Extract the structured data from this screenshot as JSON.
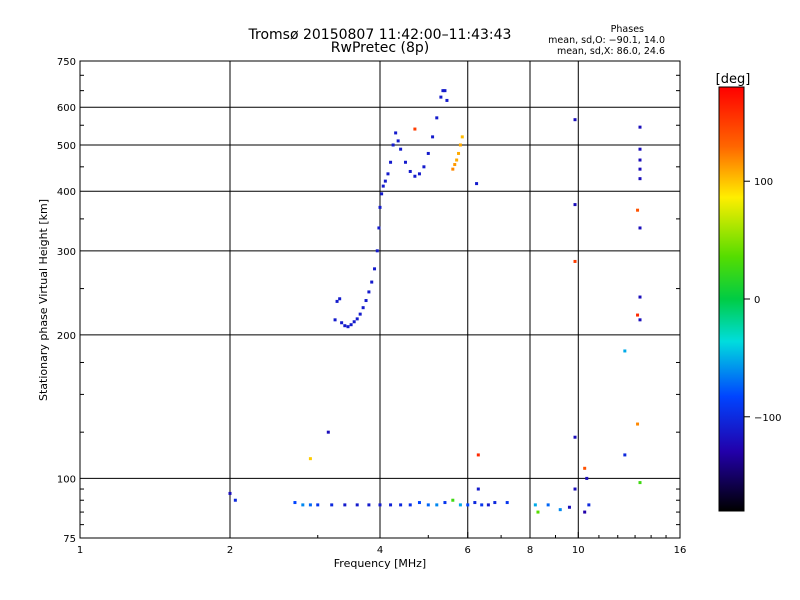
{
  "header": {
    "title_line1": "Tromsø 20150807 11:42:00–11:43:43",
    "title_line2": "RwPretec (8p)"
  },
  "phases": {
    "heading": "Phases",
    "line_o": "mean, sd,O: −90.1, 14.0",
    "line_x": "mean, sd,X:  86.0, 24.6"
  },
  "colorbar": {
    "label": "[deg]",
    "ticks": [
      "100",
      "0",
      "−100"
    ],
    "tick_values": [
      100,
      0,
      -100
    ],
    "range": [
      -180,
      180
    ]
  },
  "chart_data": {
    "type": "scatter",
    "xlabel": "Frequency [MHz]",
    "ylabel": "Stationary phase Virtual Height [km]",
    "xscale": "log",
    "yscale": "log",
    "xlim": [
      1,
      16
    ],
    "ylim": [
      75,
      750
    ],
    "xticks": [
      1,
      2,
      4,
      6,
      8,
      10,
      16
    ],
    "xtick_labels": [
      "1",
      "2",
      "4",
      "6",
      "8",
      "10",
      "16"
    ],
    "yticks": [
      75,
      100,
      200,
      300,
      400,
      500,
      600,
      750
    ],
    "ytick_labels": [
      "75",
      "100",
      "200",
      "300",
      "400",
      "500",
      "600",
      "750"
    ],
    "grid": true,
    "colormap": "rainbow phase, -180 to 180 deg",
    "trace_f_region": [
      {
        "f": 3.25,
        "h": 215,
        "phase": -110
      },
      {
        "f": 3.28,
        "h": 235,
        "phase": -110
      },
      {
        "f": 3.32,
        "h": 238,
        "phase": -110
      },
      {
        "f": 3.35,
        "h": 212,
        "phase": -110
      },
      {
        "f": 3.4,
        "h": 209,
        "phase": -110
      },
      {
        "f": 3.45,
        "h": 208,
        "phase": -110
      },
      {
        "f": 3.5,
        "h": 210,
        "phase": -110
      },
      {
        "f": 3.55,
        "h": 213,
        "phase": -110
      },
      {
        "f": 3.6,
        "h": 216,
        "phase": -110
      },
      {
        "f": 3.65,
        "h": 221,
        "phase": -110
      },
      {
        "f": 3.7,
        "h": 228,
        "phase": -110
      },
      {
        "f": 3.75,
        "h": 236,
        "phase": -110
      },
      {
        "f": 3.8,
        "h": 246,
        "phase": -110
      },
      {
        "f": 3.85,
        "h": 258,
        "phase": -110
      },
      {
        "f": 3.9,
        "h": 275,
        "phase": -110
      },
      {
        "f": 3.95,
        "h": 300,
        "phase": -110
      },
      {
        "f": 3.98,
        "h": 335,
        "phase": -110
      },
      {
        "f": 4.0,
        "h": 370,
        "phase": -110
      },
      {
        "f": 4.03,
        "h": 395,
        "phase": -110
      },
      {
        "f": 4.06,
        "h": 410,
        "phase": -110
      },
      {
        "f": 4.1,
        "h": 420,
        "phase": -110
      },
      {
        "f": 4.15,
        "h": 435,
        "phase": -110
      },
      {
        "f": 4.2,
        "h": 460,
        "phase": -110
      },
      {
        "f": 4.25,
        "h": 500,
        "phase": -110
      },
      {
        "f": 4.3,
        "h": 530,
        "phase": -110
      },
      {
        "f": 4.35,
        "h": 510,
        "phase": -110
      },
      {
        "f": 4.4,
        "h": 490,
        "phase": -110
      },
      {
        "f": 4.5,
        "h": 460,
        "phase": -110
      },
      {
        "f": 4.6,
        "h": 440,
        "phase": -110
      },
      {
        "f": 4.7,
        "h": 430,
        "phase": -110
      },
      {
        "f": 4.8,
        "h": 435,
        "phase": -110
      },
      {
        "f": 4.9,
        "h": 450,
        "phase": -110
      },
      {
        "f": 5.0,
        "h": 480,
        "phase": -110
      },
      {
        "f": 5.1,
        "h": 520,
        "phase": -110
      },
      {
        "f": 5.2,
        "h": 570,
        "phase": -110
      },
      {
        "f": 5.3,
        "h": 630,
        "phase": -110
      },
      {
        "f": 5.35,
        "h": 650,
        "phase": -110
      },
      {
        "f": 5.4,
        "h": 650,
        "phase": -110
      },
      {
        "f": 5.45,
        "h": 620,
        "phase": -110
      }
    ],
    "trace_x_mode": [
      {
        "f": 5.6,
        "h": 445,
        "phase": 120
      },
      {
        "f": 5.65,
        "h": 455,
        "phase": 115
      },
      {
        "f": 5.7,
        "h": 465,
        "phase": 110
      },
      {
        "f": 5.75,
        "h": 480,
        "phase": 110
      },
      {
        "f": 5.8,
        "h": 500,
        "phase": 110
      },
      {
        "f": 5.85,
        "h": 520,
        "phase": 105
      }
    ],
    "trace_e_region": [
      {
        "f": 2.0,
        "h": 93,
        "phase": -120
      },
      {
        "f": 2.05,
        "h": 90,
        "phase": -100
      },
      {
        "f": 2.7,
        "h": 89,
        "phase": -80
      },
      {
        "f": 2.8,
        "h": 88,
        "phase": -60
      },
      {
        "f": 2.9,
        "h": 88,
        "phase": -70
      },
      {
        "f": 3.0,
        "h": 88,
        "phase": -90
      },
      {
        "f": 3.2,
        "h": 88,
        "phase": -100
      },
      {
        "f": 3.4,
        "h": 88,
        "phase": -110
      },
      {
        "f": 3.6,
        "h": 88,
        "phase": -110
      },
      {
        "f": 3.8,
        "h": 88,
        "phase": -110
      },
      {
        "f": 4.0,
        "h": 88,
        "phase": -110
      },
      {
        "f": 4.2,
        "h": 88,
        "phase": -105
      },
      {
        "f": 4.4,
        "h": 88,
        "phase": -100
      },
      {
        "f": 4.6,
        "h": 88,
        "phase": -95
      },
      {
        "f": 4.8,
        "h": 89,
        "phase": -80
      },
      {
        "f": 5.0,
        "h": 88,
        "phase": -70
      },
      {
        "f": 5.2,
        "h": 88,
        "phase": -60
      },
      {
        "f": 5.4,
        "h": 89,
        "phase": -90
      },
      {
        "f": 5.6,
        "h": 90,
        "phase": 30
      },
      {
        "f": 5.8,
        "h": 88,
        "phase": -50
      },
      {
        "f": 6.0,
        "h": 88,
        "phase": -80
      },
      {
        "f": 6.2,
        "h": 89,
        "phase": -100
      },
      {
        "f": 6.4,
        "h": 88,
        "phase": -90
      },
      {
        "f": 6.6,
        "h": 88,
        "phase": -110
      },
      {
        "f": 6.8,
        "h": 89,
        "phase": -100
      },
      {
        "f": 7.2,
        "h": 89,
        "phase": -90
      },
      {
        "f": 8.2,
        "h": 88,
        "phase": -50
      },
      {
        "f": 8.3,
        "h": 85,
        "phase": 40
      },
      {
        "f": 8.7,
        "h": 88,
        "phase": -70
      },
      {
        "f": 9.2,
        "h": 86,
        "phase": -60
      },
      {
        "f": 9.6,
        "h": 87,
        "phase": -120
      },
      {
        "f": 10.3,
        "h": 85,
        "phase": -130
      },
      {
        "f": 10.5,
        "h": 88,
        "phase": -100
      }
    ],
    "scattered_points": [
      {
        "f": 2.9,
        "h": 110,
        "phase": 100
      },
      {
        "f": 3.15,
        "h": 125,
        "phase": -120
      },
      {
        "f": 4.7,
        "h": 540,
        "phase": 150
      },
      {
        "f": 6.25,
        "h": 415,
        "phase": -110
      },
      {
        "f": 6.3,
        "h": 112,
        "phase": 160
      },
      {
        "f": 6.3,
        "h": 95,
        "phase": -110
      },
      {
        "f": 9.85,
        "h": 565,
        "phase": -120
      },
      {
        "f": 9.85,
        "h": 375,
        "phase": -120
      },
      {
        "f": 9.85,
        "h": 285,
        "phase": 150
      },
      {
        "f": 9.85,
        "h": 122,
        "phase": -120
      },
      {
        "f": 9.85,
        "h": 95,
        "phase": -120
      },
      {
        "f": 10.3,
        "h": 105,
        "phase": 140
      },
      {
        "f": 10.4,
        "h": 100,
        "phase": -120
      },
      {
        "f": 12.4,
        "h": 185,
        "phase": -50
      },
      {
        "f": 12.4,
        "h": 112,
        "phase": -100
      },
      {
        "f": 13.3,
        "h": 545,
        "phase": -120
      },
      {
        "f": 13.3,
        "h": 490,
        "phase": -120
      },
      {
        "f": 13.3,
        "h": 465,
        "phase": -120
      },
      {
        "f": 13.3,
        "h": 445,
        "phase": -120
      },
      {
        "f": 13.3,
        "h": 425,
        "phase": -120
      },
      {
        "f": 13.15,
        "h": 365,
        "phase": 140
      },
      {
        "f": 13.3,
        "h": 335,
        "phase": -120
      },
      {
        "f": 13.3,
        "h": 240,
        "phase": -120
      },
      {
        "f": 13.15,
        "h": 220,
        "phase": 160
      },
      {
        "f": 13.3,
        "h": 215,
        "phase": -120
      },
      {
        "f": 13.15,
        "h": 130,
        "phase": 120
      },
      {
        "f": 13.3,
        "h": 98,
        "phase": 30
      }
    ]
  }
}
